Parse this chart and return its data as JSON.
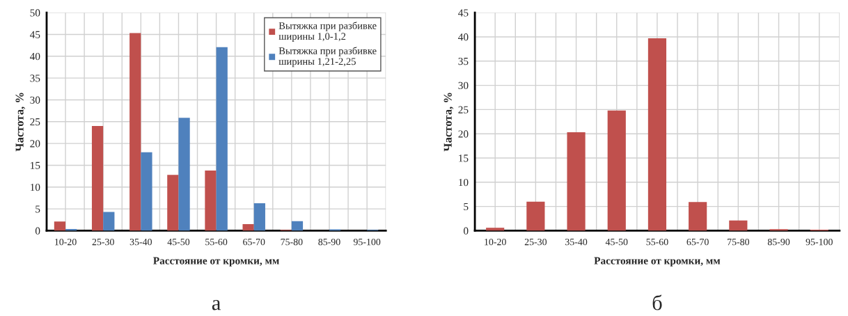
{
  "chart_data": [
    {
      "type": "bar",
      "xlabel": "Расстояние от кромки, мм",
      "ylabel": "Частота, %",
      "categories": [
        "10-20",
        "25-30",
        "35-40",
        "45-50",
        "55-60",
        "65-70",
        "75-80",
        "85-90",
        "95-100"
      ],
      "series": [
        {
          "name": "Вытяжка при разбивке ширины 1,0-1,2",
          "color": "#c0504d",
          "values": [
            2.1,
            24,
            45.3,
            12.8,
            13.8,
            1.5,
            0.2,
            null,
            null
          ]
        },
        {
          "name": "Вытяжка при разбивке ширины 1,21-2,25",
          "color": "#4f81bd",
          "values": [
            0.4,
            4.3,
            18,
            25.9,
            42.1,
            6.3,
            2.2,
            0.3,
            0.2
          ]
        }
      ],
      "ylim": [
        0,
        50
      ],
      "yticks": [
        0,
        5,
        10,
        15,
        20,
        25,
        30,
        35,
        40,
        45,
        50
      ],
      "grid": true,
      "legend": "top right",
      "annotations": [
        "а"
      ]
    },
    {
      "type": "bar",
      "xlabel": "Расстояние от кромки, мм",
      "ylabel": "Частота, %",
      "categories": [
        "10-20",
        "25-30",
        "35-40",
        "45-50",
        "55-60",
        "65-70",
        "75-80",
        "85-90",
        "95-100"
      ],
      "series": [
        {
          "color": "#c0504d",
          "values": [
            0.6,
            6,
            20.3,
            24.8,
            39.7,
            5.9,
            2.1,
            0.3,
            0.2
          ]
        }
      ],
      "ylim": [
        0,
        45
      ],
      "yticks": [
        0,
        5,
        10,
        15,
        20,
        25,
        30,
        35,
        40,
        45
      ],
      "grid": true,
      "annotations": [
        "б"
      ]
    }
  ]
}
